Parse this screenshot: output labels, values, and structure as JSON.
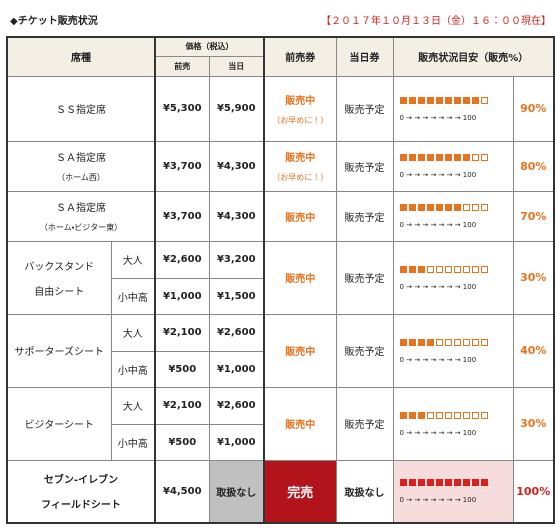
{
  "header": {
    "title": "◆チケット販売状況",
    "timestamp": "【２０１７年１０月１３日（金）１６：００現在】"
  },
  "table": {
    "columns": {
      "seat": "席種",
      "price": "価格（税込）",
      "advance": "前売",
      "day": "当日",
      "advance_ticket": "前売券",
      "day_ticket": "当日券",
      "status": "販売状況目安（販売%）"
    },
    "gauge_scale": "0 → → → → → → → 100",
    "rows": [
      {
        "name": "ＳＳ指定席",
        "prices": [
          {
            "advance": "¥5,300",
            "day": "¥5,900"
          }
        ],
        "advance_status": "販売中",
        "advance_note": "（お早めに！）",
        "day_status": "販売予定",
        "sales": {
          "value": 90,
          "label": "90%"
        }
      },
      {
        "name": "ＳＡ指定席",
        "name_note": "（ホーム西）",
        "prices": [
          {
            "advance": "¥3,700",
            "day": "¥4,300"
          }
        ],
        "advance_status": "販売中",
        "advance_note": "（お早めに！）",
        "day_status": "販売予定",
        "sales": {
          "value": 80,
          "label": "80%"
        }
      },
      {
        "name": "ＳＡ指定席",
        "name_note": "（ホーム・ビジター東）",
        "prices": [
          {
            "advance": "¥3,700",
            "day": "¥4,300"
          }
        ],
        "advance_status": "販売中",
        "day_status": "販売予定",
        "sales": {
          "value": 70,
          "label": "70%"
        }
      },
      {
        "name": "バックスタンド",
        "name_line2": "自由シート",
        "prices": [
          {
            "label": "大人",
            "advance": "¥2,600",
            "day": "¥3,200"
          },
          {
            "label": "小中高",
            "advance": "¥1,000",
            "day": "¥1,500"
          }
        ],
        "advance_status": "販売中",
        "day_status": "販売予定",
        "sales": {
          "value": 30,
          "label": "30%"
        }
      },
      {
        "name": "サポーターズシート",
        "prices": [
          {
            "label": "大人",
            "advance": "¥2,100",
            "day": "¥2,600"
          },
          {
            "label": "小中高",
            "advance": "¥500",
            "day": "¥1,000"
          }
        ],
        "advance_status": "販売中",
        "day_status": "販売予定",
        "sales": {
          "value": 40,
          "label": "40%"
        }
      },
      {
        "name": "ビジターシート",
        "prices": [
          {
            "label": "大人",
            "advance": "¥2,100",
            "day": "¥2,600"
          },
          {
            "label": "小中高",
            "advance": "¥500",
            "day": "¥1,000"
          }
        ],
        "advance_status": "販売中",
        "day_status": "販売予定",
        "sales": {
          "value": 30,
          "label": "30%"
        }
      },
      {
        "name": "セブン-イレブン",
        "name_line2": "フィールドシート",
        "sold_out": true,
        "prices": [
          {
            "advance": "¥4,500",
            "day": "取扱なし"
          }
        ],
        "advance_status": "完売",
        "day_status": "取扱なし",
        "sales": {
          "value": 100,
          "label": "100%"
        }
      }
    ]
  }
}
